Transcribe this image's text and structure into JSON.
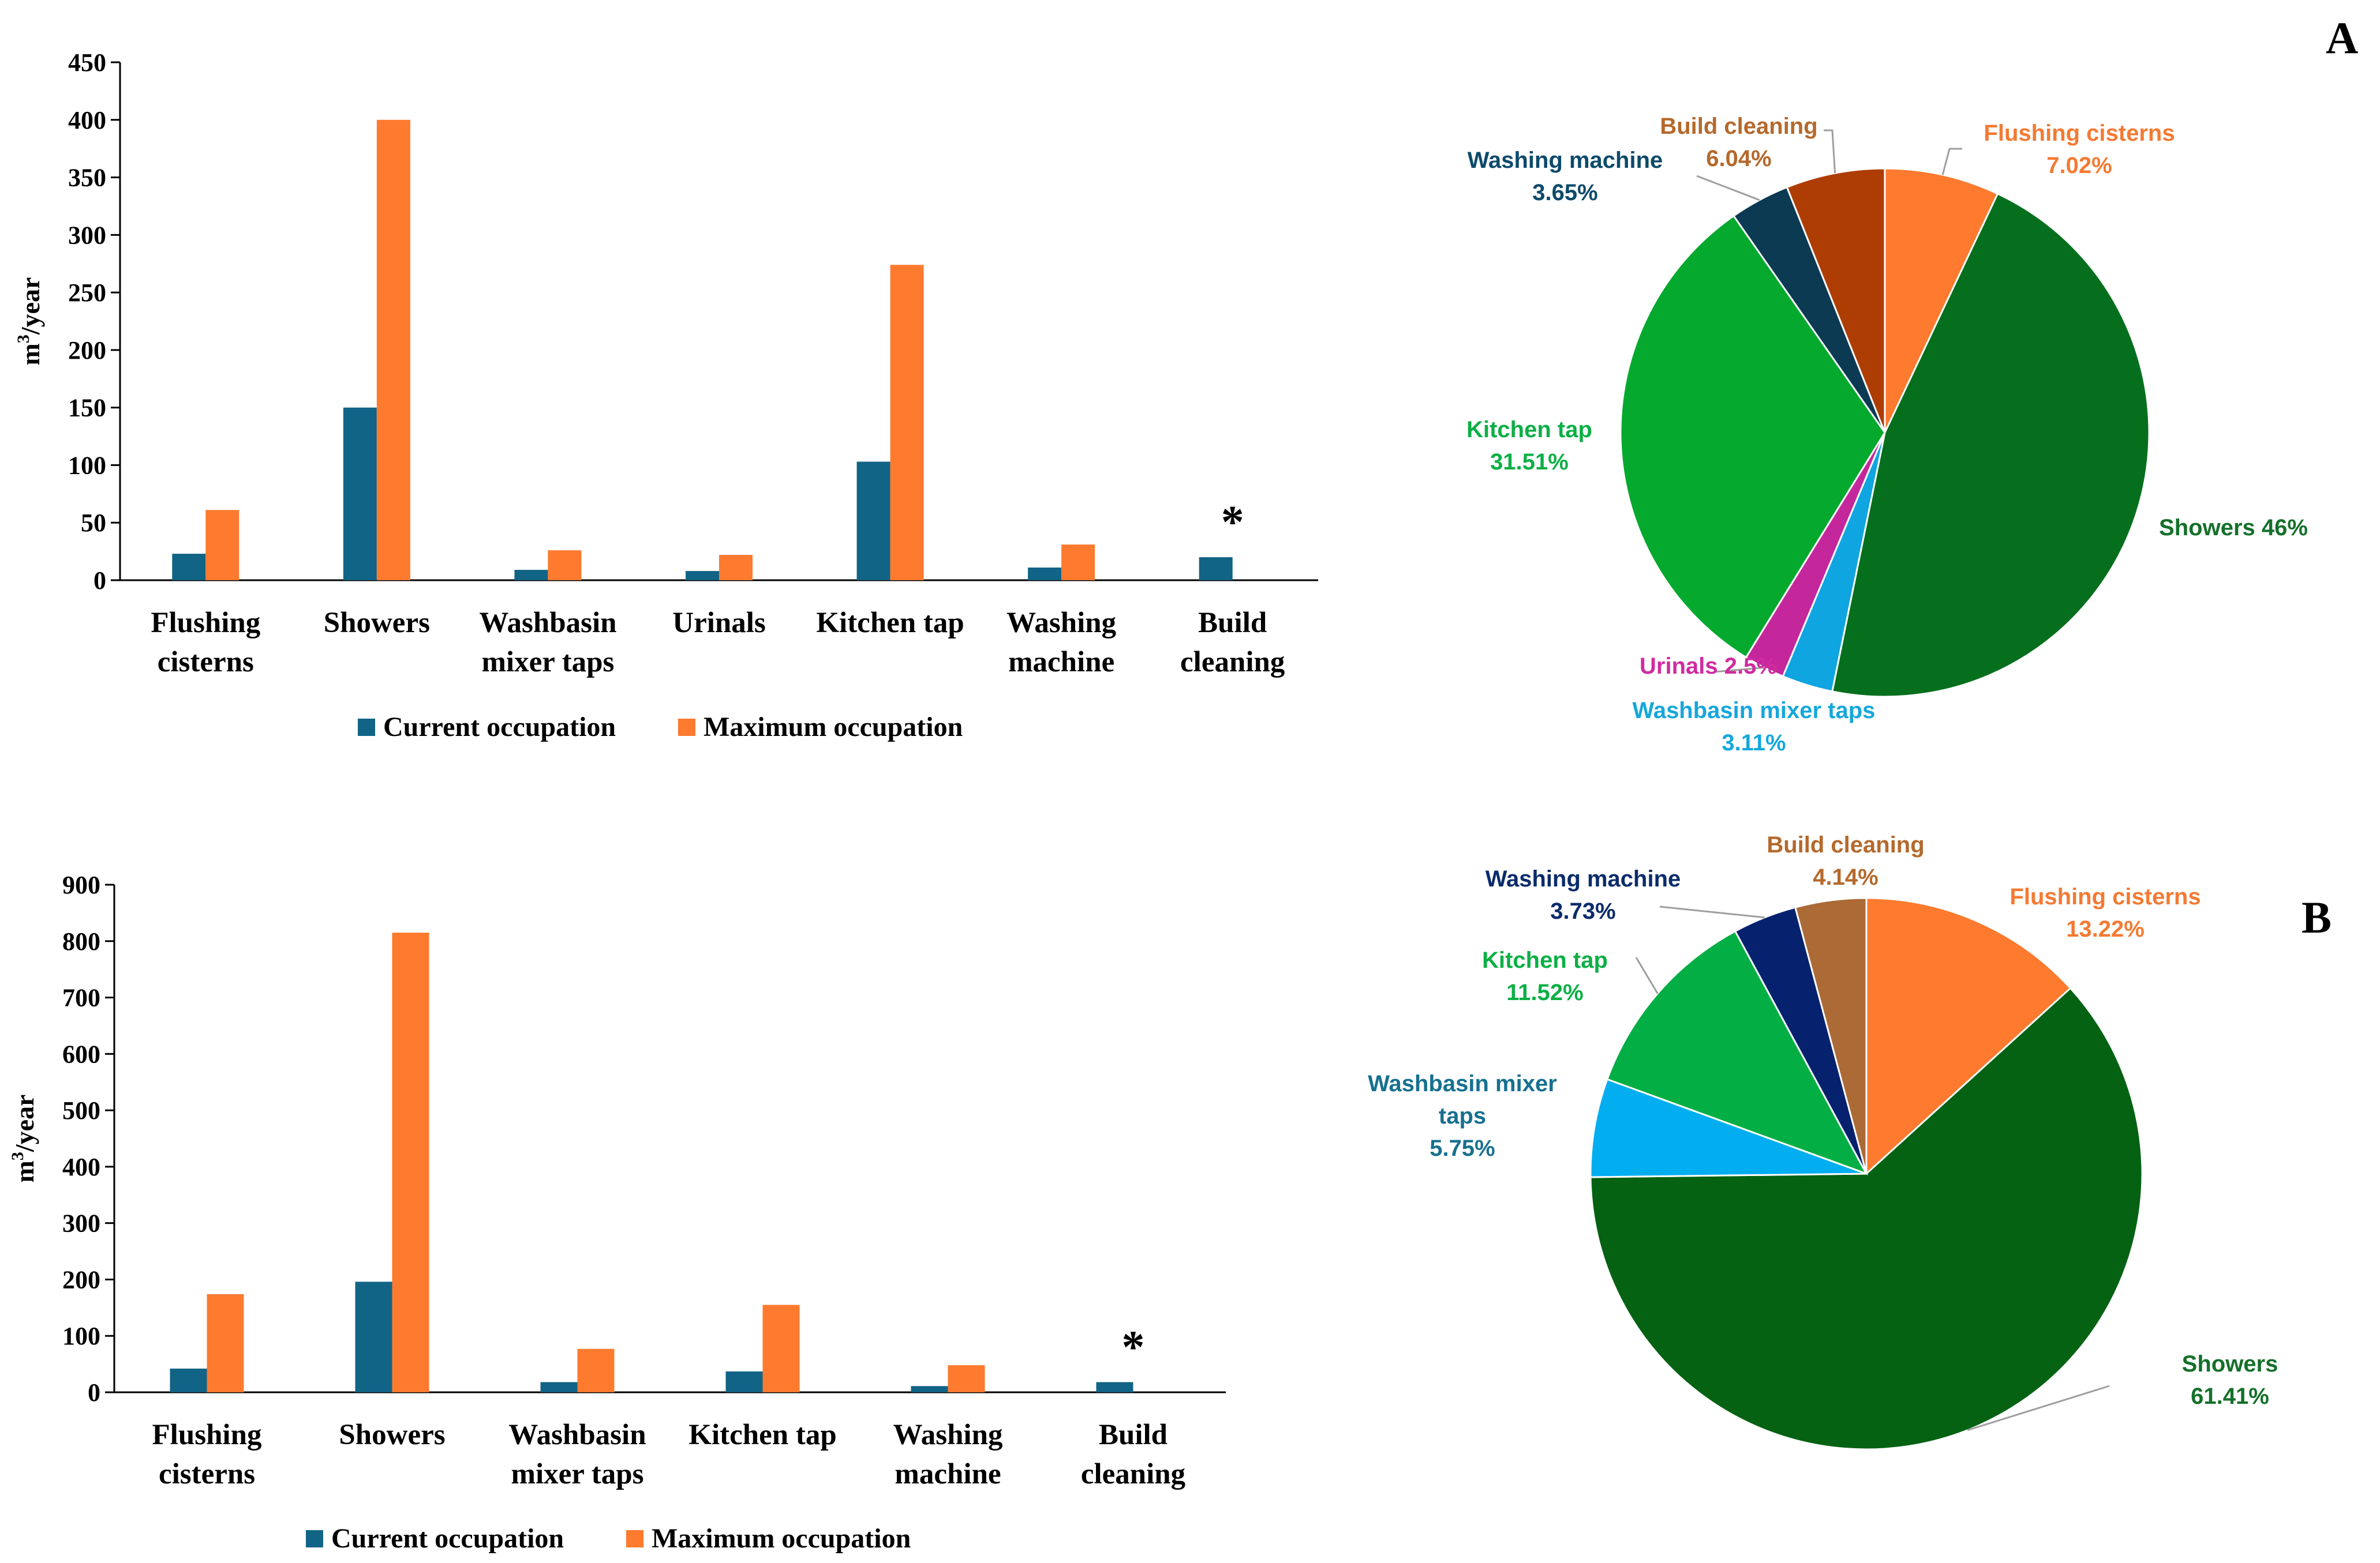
{
  "panel_labels": [
    "A",
    "B"
  ],
  "colors": {
    "current": "#116485",
    "maximum": "#fd7a2f",
    "axis": "#000000",
    "leader": "#9e9e9e"
  },
  "chart_data": [
    {
      "id": "A-bar",
      "type": "bar",
      "ylabel_main": "m",
      "ylabel_sup": "3",
      "ylabel_rest": "/year",
      "ylim": [
        0,
        450
      ],
      "yticks": [
        0,
        50,
        100,
        150,
        200,
        250,
        300,
        350,
        400,
        450
      ],
      "categories": [
        [
          "Flushing",
          "cisterns"
        ],
        [
          "Showers"
        ],
        [
          "Washbasin",
          "mixer taps"
        ],
        [
          "Urinals"
        ],
        [
          "Kitchen tap"
        ],
        [
          "Washing",
          "machine"
        ],
        [
          "Build",
          "cleaning"
        ]
      ],
      "series": [
        {
          "name": "Current occupation",
          "color": "#116485",
          "values": [
            23,
            150,
            9,
            8,
            103,
            11,
            20
          ]
        },
        {
          "name": "Maximum occupation",
          "color": "#fd7a2f",
          "values": [
            61,
            400,
            26,
            22,
            274,
            31,
            null
          ]
        }
      ],
      "annotations": [
        {
          "category_index": 6,
          "text": "*"
        }
      ],
      "legend": "bottom"
    },
    {
      "id": "A-pie",
      "type": "pie",
      "slices": [
        {
          "label": "Flushing cisterns",
          "value": 7.02,
          "pct": "7.02%",
          "color": "#fd7a2f",
          "text_color": "#f47a33"
        },
        {
          "label": "Showers",
          "value": 46.17,
          "pct": "46%",
          "color": "#066f1d",
          "text_color": "#14702a"
        },
        {
          "label": "Washbasin mixer taps",
          "value": 3.11,
          "pct": "3.11%",
          "color": "#0fa5e0",
          "text_color": "#15a7dc"
        },
        {
          "label": "Urinals",
          "value": 2.5,
          "pct": "2.5%",
          "color": "#c4279b",
          "text_color": "#d02ba0"
        },
        {
          "label": "Kitchen tap",
          "value": 31.51,
          "pct": "31.51%",
          "color": "#04a92d",
          "text_color": "#0caf45"
        },
        {
          "label": "Washing machine",
          "value": 3.65,
          "pct": "3.65%",
          "color": "#0b3a52",
          "text_color": "#0d4a6a"
        },
        {
          "label": "Build cleaning",
          "value": 6.04,
          "pct": "6.04%",
          "color": "#ae3d04",
          "text_color": "#b5692c"
        }
      ]
    },
    {
      "id": "B-bar",
      "type": "bar",
      "ylabel_main": "m",
      "ylabel_sup": "3",
      "ylabel_rest": "/year",
      "ylim": [
        0,
        900
      ],
      "yticks": [
        0,
        100,
        200,
        300,
        400,
        500,
        600,
        700,
        800,
        900
      ],
      "categories": [
        [
          "Flushing",
          "cisterns"
        ],
        [
          "Showers"
        ],
        [
          "Washbasin",
          "mixer taps"
        ],
        [
          "Kitchen tap"
        ],
        [
          "Washing",
          "machine"
        ],
        [
          "Build",
          "cleaning"
        ]
      ],
      "series": [
        {
          "name": "Current occupation",
          "color": "#116485",
          "values": [
            42,
            196,
            18,
            37,
            11,
            18
          ]
        },
        {
          "name": "Maximum occupation",
          "color": "#fd7a2f",
          "values": [
            174,
            815,
            77,
            155,
            48,
            null
          ]
        }
      ],
      "annotations": [
        {
          "category_index": 5,
          "text": "*"
        }
      ],
      "legend": "bottom"
    },
    {
      "id": "B-pie",
      "type": "pie",
      "slices": [
        {
          "label": "Flushing cisterns",
          "value": 13.22,
          "pct": "13.22%",
          "color": "#fd7a2f",
          "text_color": "#f47a33"
        },
        {
          "label": "Showers",
          "value": 61.41,
          "pct": "61.41%",
          "color": "#046212",
          "text_color": "#14702a"
        },
        {
          "label": "Washbasin mixer taps",
          "value": 5.75,
          "pct": "5.75%",
          "color": "#03aef0",
          "text_color": "#17708f"
        },
        {
          "label": "Kitchen tap",
          "value": 11.52,
          "pct": "11.52%",
          "color": "#03af45",
          "text_color": "#0caf45"
        },
        {
          "label": "Washing machine",
          "value": 3.73,
          "pct": "3.73%",
          "color": "#06226e",
          "text_color": "#0b2c6b"
        },
        {
          "label": "Build cleaning",
          "value": 4.14,
          "pct": "4.14%",
          "color": "#ac6a36",
          "text_color": "#b5692c"
        }
      ]
    }
  ]
}
